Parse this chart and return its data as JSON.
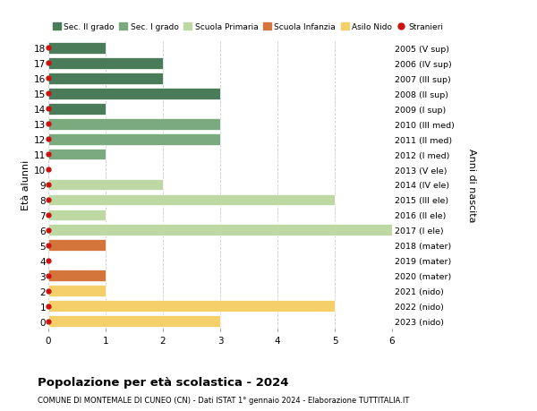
{
  "ages": [
    18,
    17,
    16,
    15,
    14,
    13,
    12,
    11,
    10,
    9,
    8,
    7,
    6,
    5,
    4,
    3,
    2,
    1,
    0
  ],
  "right_labels": [
    "2005 (V sup)",
    "2006 (IV sup)",
    "2007 (III sup)",
    "2008 (II sup)",
    "2009 (I sup)",
    "2010 (III med)",
    "2011 (II med)",
    "2012 (I med)",
    "2013 (V ele)",
    "2014 (IV ele)",
    "2015 (III ele)",
    "2016 (II ele)",
    "2017 (I ele)",
    "2018 (mater)",
    "2019 (mater)",
    "2020 (mater)",
    "2021 (nido)",
    "2022 (nido)",
    "2023 (nido)"
  ],
  "bars": [
    {
      "age": 18,
      "value": 1,
      "color": "#4a7c59"
    },
    {
      "age": 17,
      "value": 2,
      "color": "#4a7c59"
    },
    {
      "age": 16,
      "value": 2,
      "color": "#4a7c59"
    },
    {
      "age": 15,
      "value": 3,
      "color": "#4a7c59"
    },
    {
      "age": 14,
      "value": 1,
      "color": "#4a7c59"
    },
    {
      "age": 13,
      "value": 3,
      "color": "#7aaa7e"
    },
    {
      "age": 12,
      "value": 3,
      "color": "#7aaa7e"
    },
    {
      "age": 11,
      "value": 1,
      "color": "#7aaa7e"
    },
    {
      "age": 10,
      "value": 0,
      "color": "#bdd8a3"
    },
    {
      "age": 9,
      "value": 2,
      "color": "#bdd8a3"
    },
    {
      "age": 8,
      "value": 5,
      "color": "#bdd8a3"
    },
    {
      "age": 7,
      "value": 1,
      "color": "#bdd8a3"
    },
    {
      "age": 6,
      "value": 6,
      "color": "#bdd8a3"
    },
    {
      "age": 5,
      "value": 1,
      "color": "#d4763b"
    },
    {
      "age": 4,
      "value": 0,
      "color": "#d4763b"
    },
    {
      "age": 3,
      "value": 1,
      "color": "#d4763b"
    },
    {
      "age": 2,
      "value": 1,
      "color": "#f5d06a"
    },
    {
      "age": 1,
      "value": 5,
      "color": "#f5d06a"
    },
    {
      "age": 0,
      "value": 3,
      "color": "#f5d06a"
    }
  ],
  "title": "Popolazione per età scolastica - 2024",
  "subtitle": "COMUNE DI MONTEMALE DI CUNEO (CN) - Dati ISTAT 1° gennaio 2024 - Elaborazione TUTTITALIA.IT",
  "ylabel": "Età alunni",
  "right_ylabel": "Anni di nascita",
  "xlim": [
    0,
    6
  ],
  "xticks": [
    0,
    1,
    2,
    3,
    4,
    5,
    6
  ],
  "legend_items": [
    {
      "label": "Sec. II grado",
      "color": "#4a7c59",
      "type": "patch"
    },
    {
      "label": "Sec. I grado",
      "color": "#7aaa7e",
      "type": "patch"
    },
    {
      "label": "Scuola Primaria",
      "color": "#bdd8a3",
      "type": "patch"
    },
    {
      "label": "Scuola Infanzia",
      "color": "#d4763b",
      "type": "patch"
    },
    {
      "label": "Asilo Nido",
      "color": "#f5d06a",
      "type": "patch"
    },
    {
      "label": "Stranieri",
      "color": "#cc1111",
      "type": "dot"
    }
  ],
  "bg_color": "#ffffff",
  "bar_height": 0.75,
  "stranieri_color": "#cc1111"
}
